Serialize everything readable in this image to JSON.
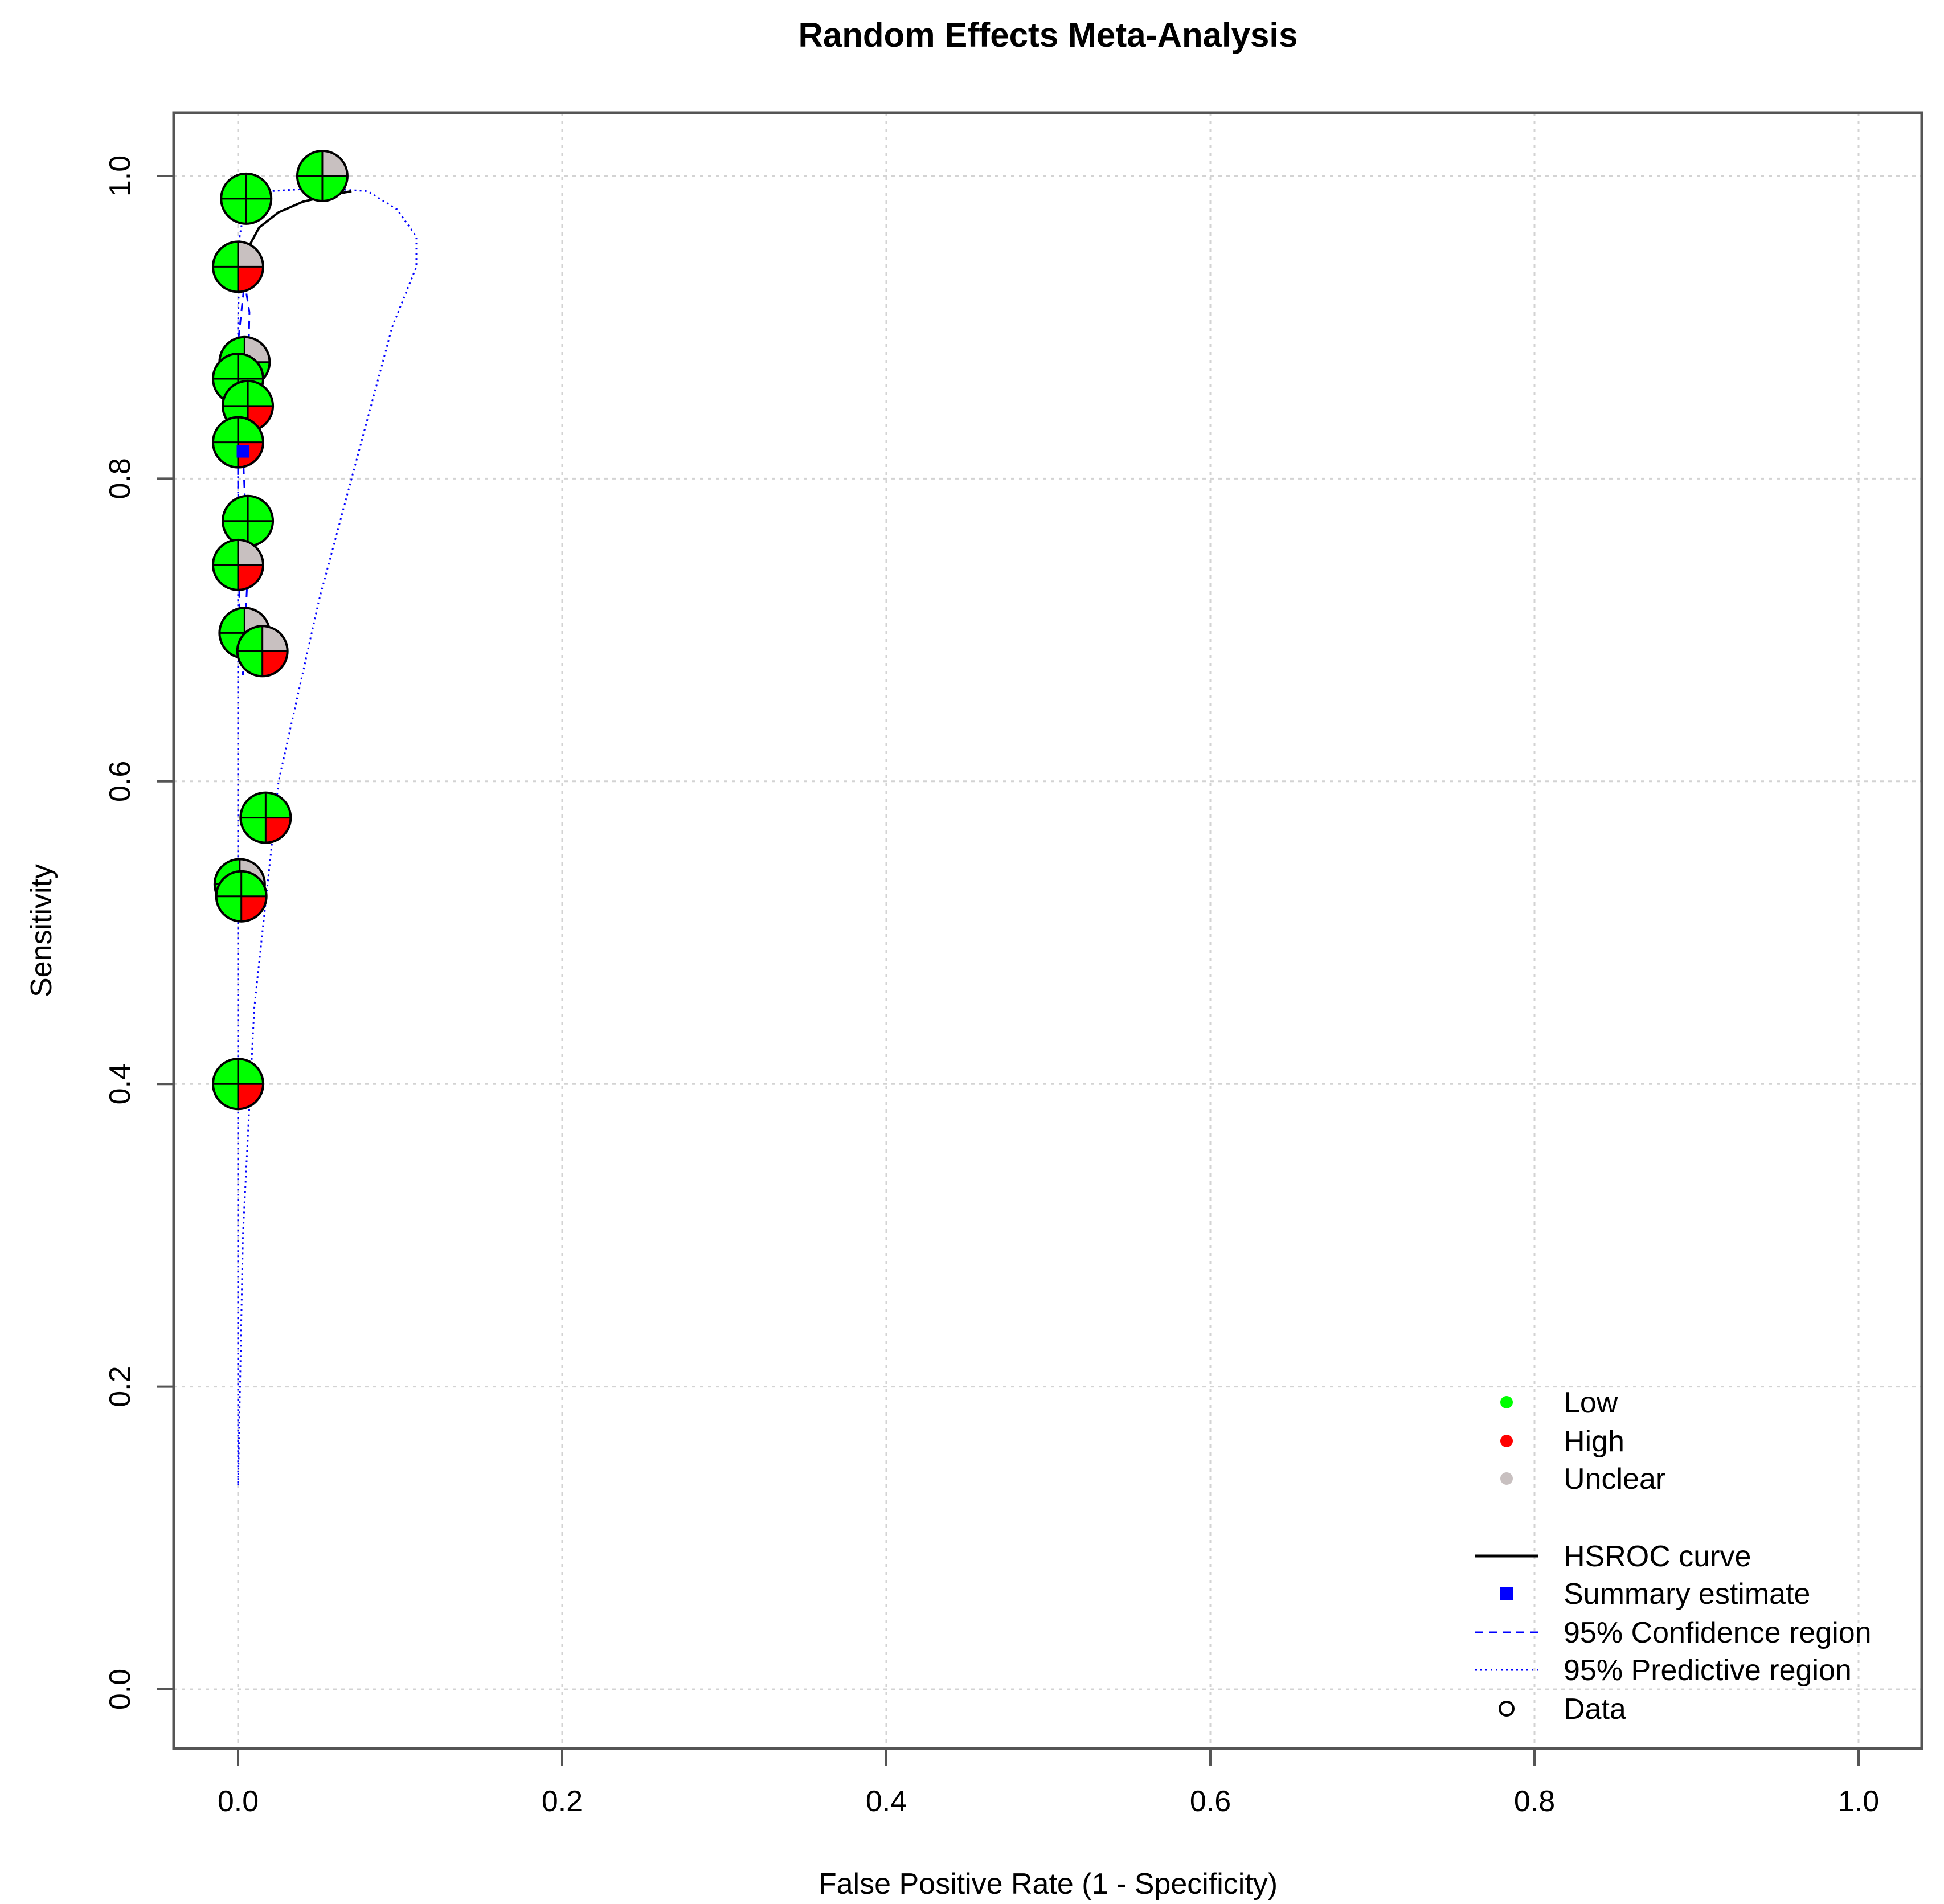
{
  "chart_data": {
    "type": "scatter",
    "title": "Random Effects Meta-Analysis",
    "xlabel": "False Positive Rate (1 - Specificity)",
    "ylabel": "Sensitivity",
    "xlim": [
      0,
      1
    ],
    "ylim": [
      0,
      1
    ],
    "x_ticks": [
      "0.0",
      "0.2",
      "0.4",
      "0.6",
      "0.8",
      "1.0"
    ],
    "y_ticks": [
      "0.0",
      "0.2",
      "0.4",
      "0.6",
      "0.8",
      "1.0"
    ],
    "grid": true,
    "legend_position": "bottom-right",
    "colors": {
      "Low": "#00ff00",
      "High": "#ff0000",
      "Unclear": "#c8c0c0",
      "hsroc": "#000000",
      "summary": "#0000ff",
      "confidence": "#0000ff",
      "predictive": "#0000ff",
      "grid": "#d3d3d3"
    },
    "legend": {
      "risk_levels": [
        "Low",
        "High",
        "Unclear"
      ],
      "items": [
        "HSROC curve",
        "Summary estimate",
        "95% Confidence region",
        "95% Predictive region",
        "Data"
      ]
    },
    "studies": [
      {
        "x": 0.052,
        "y": 1.0,
        "quadrants": [
          "Low",
          "Unclear",
          "Low",
          "Low"
        ]
      },
      {
        "x": 0.005,
        "y": 0.985,
        "quadrants": [
          "Low",
          "Low",
          "Low",
          "Low"
        ]
      },
      {
        "x": 0.0,
        "y": 0.94,
        "quadrants": [
          "Low",
          "Unclear",
          "High",
          "Low"
        ]
      },
      {
        "x": 0.004,
        "y": 0.877,
        "quadrants": [
          "Low",
          "Unclear",
          "Low",
          "Low"
        ]
      },
      {
        "x": 0.0,
        "y": 0.866,
        "quadrants": [
          "Low",
          "Low",
          "Low",
          "Low"
        ]
      },
      {
        "x": 0.006,
        "y": 0.848,
        "quadrants": [
          "Low",
          "Low",
          "High",
          "Low"
        ]
      },
      {
        "x": 0.0,
        "y": 0.824,
        "quadrants": [
          "Low",
          "Low",
          "High",
          "Low"
        ]
      },
      {
        "x": 0.006,
        "y": 0.772,
        "quadrants": [
          "Low",
          "Low",
          "Low",
          "Low"
        ]
      },
      {
        "x": 0.0,
        "y": 0.743,
        "quadrants": [
          "Low",
          "Unclear",
          "High",
          "Low"
        ]
      },
      {
        "x": 0.004,
        "y": 0.698,
        "quadrants": [
          "Low",
          "Unclear",
          "Low",
          "Low"
        ]
      },
      {
        "x": 0.015,
        "y": 0.686,
        "quadrants": [
          "Low",
          "Unclear",
          "High",
          "Low"
        ]
      },
      {
        "x": 0.017,
        "y": 0.576,
        "quadrants": [
          "Low",
          "Low",
          "High",
          "Low"
        ]
      },
      {
        "x": 0.001,
        "y": 0.532,
        "quadrants": [
          "Low",
          "Unclear",
          "Low",
          "Low"
        ]
      },
      {
        "x": 0.002,
        "y": 0.524,
        "quadrants": [
          "Low",
          "Low",
          "High",
          "Low"
        ]
      },
      {
        "x": 0.0,
        "y": 0.4,
        "quadrants": [
          "Low",
          "Low",
          "High",
          "Low"
        ]
      }
    ],
    "summary_estimate": {
      "x": 0.003,
      "y": 0.818
    },
    "hsroc_curve": [
      [
        0.0,
        0.928
      ],
      [
        0.005,
        0.95
      ],
      [
        0.013,
        0.966
      ],
      [
        0.025,
        0.976
      ],
      [
        0.04,
        0.983
      ],
      [
        0.06,
        0.988
      ],
      [
        0.07,
        0.99
      ]
    ],
    "confidence_region": [
      [
        0.003,
        0.818
      ],
      [
        0.006,
        0.86
      ],
      [
        0.007,
        0.91
      ],
      [
        0.004,
        0.93
      ],
      [
        0.0,
        0.89
      ],
      [
        0.0,
        0.8
      ],
      [
        0.001,
        0.7
      ],
      [
        0.003,
        0.67
      ],
      [
        0.006,
        0.74
      ],
      [
        0.003,
        0.818
      ]
    ],
    "predictive_region": [
      [
        0.0,
        0.135
      ],
      [
        0.003,
        0.3
      ],
      [
        0.01,
        0.45
      ],
      [
        0.025,
        0.6
      ],
      [
        0.05,
        0.72
      ],
      [
        0.075,
        0.82
      ],
      [
        0.095,
        0.9
      ],
      [
        0.11,
        0.94
      ],
      [
        0.11,
        0.96
      ],
      [
        0.098,
        0.978
      ],
      [
        0.08,
        0.99
      ],
      [
        0.05,
        0.992
      ],
      [
        0.02,
        0.99
      ],
      [
        0.005,
        0.985
      ],
      [
        0.001,
        0.96
      ],
      [
        0.0,
        0.9
      ],
      [
        0.0,
        0.7
      ],
      [
        0.0,
        0.4
      ],
      [
        0.0,
        0.135
      ]
    ]
  }
}
